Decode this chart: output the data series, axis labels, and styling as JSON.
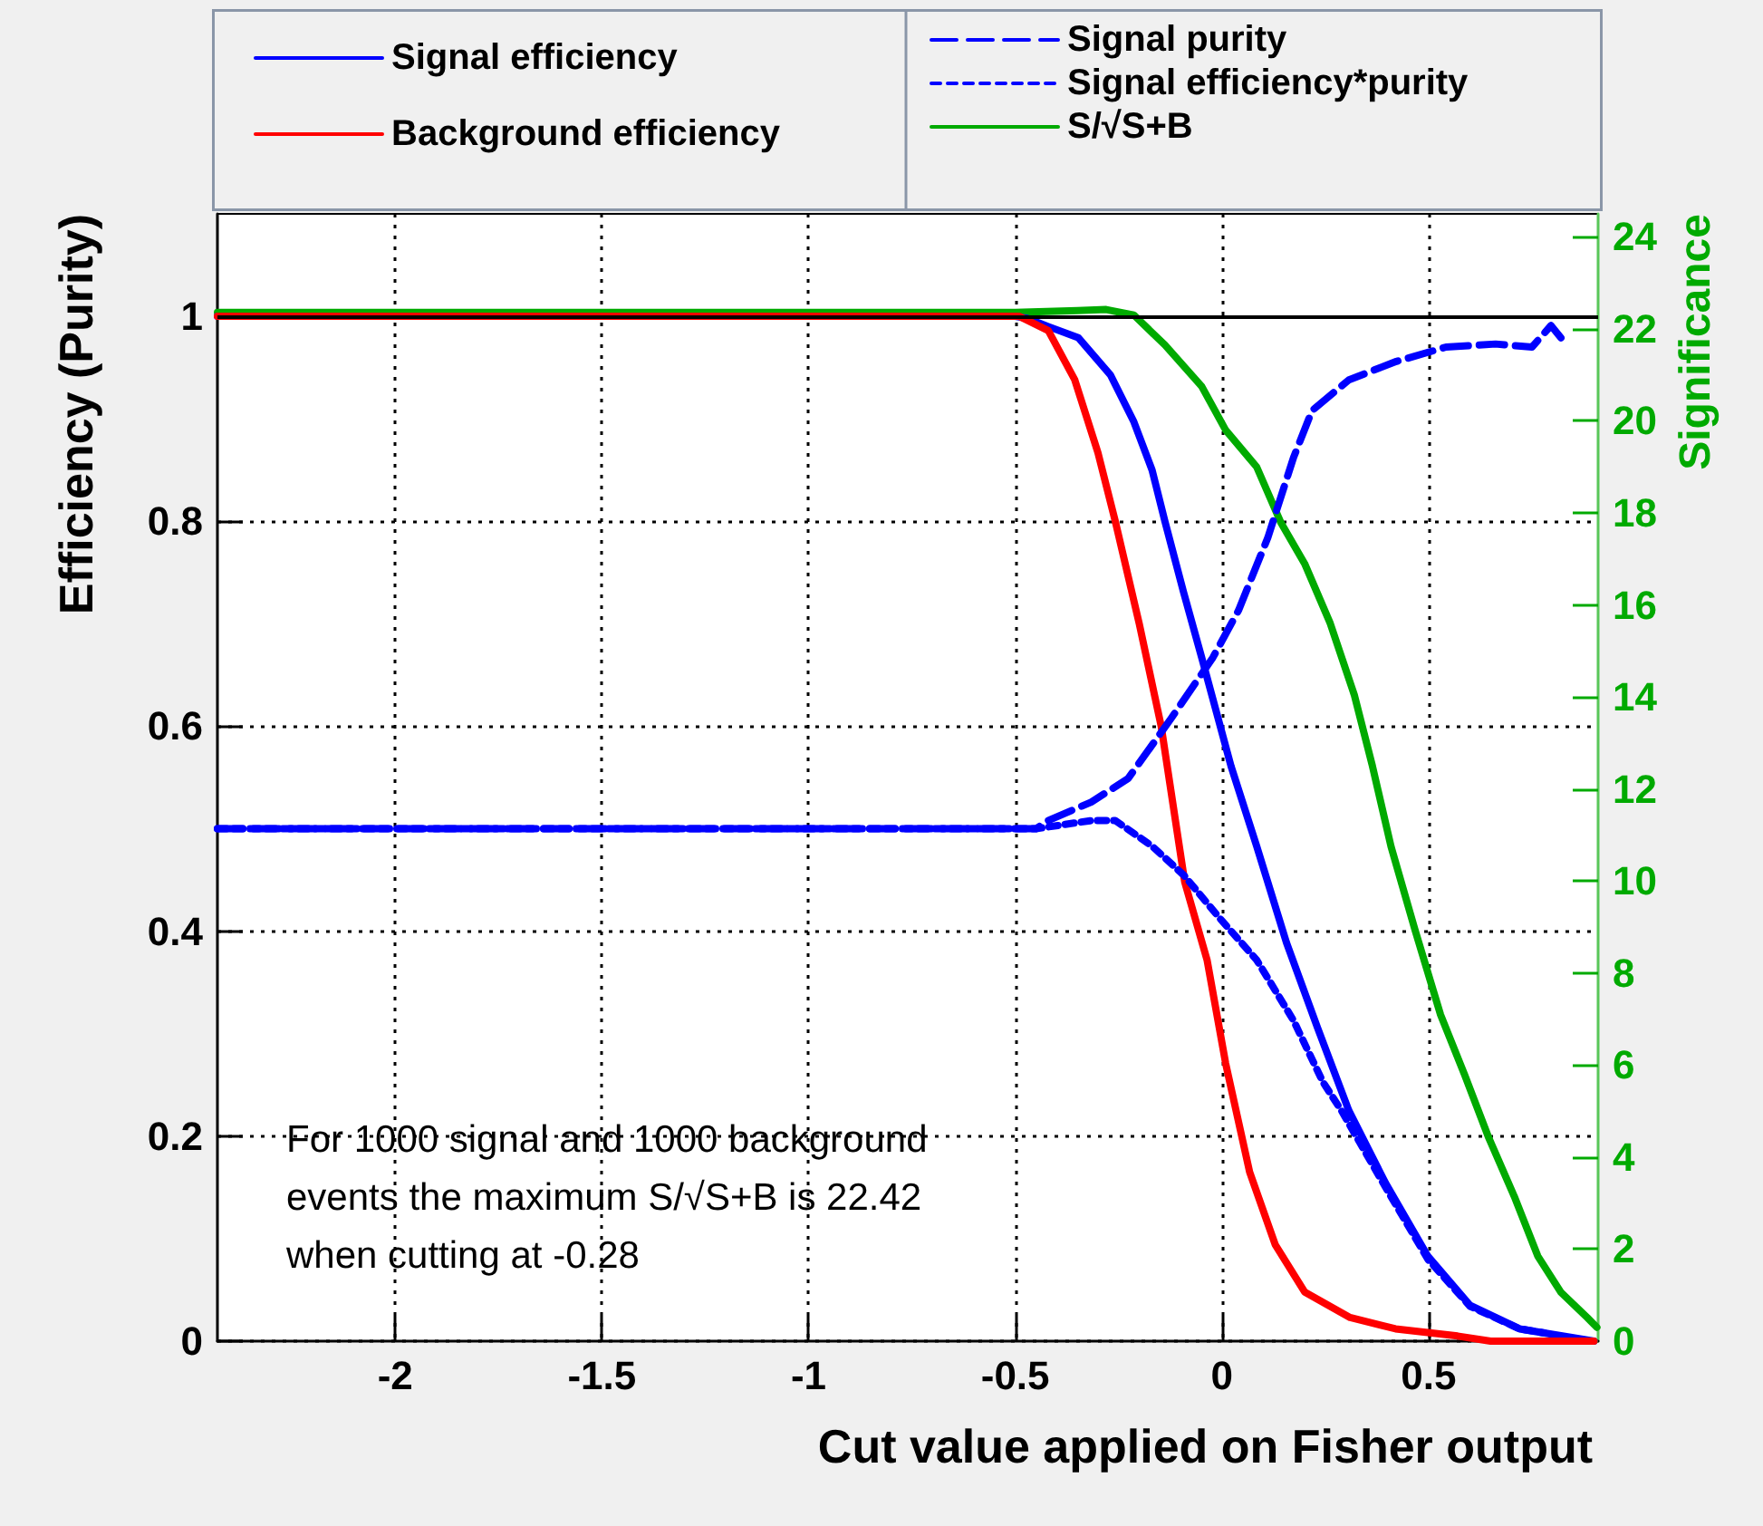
{
  "chart_data": {
    "type": "line",
    "xlabel": "Cut value applied on Fisher output",
    "ylabel": "Efficiency (Purity)",
    "y2label": "Significance",
    "annotations": [
      "For 1000 signal and 1000 background events the maximum S/√S+B is 22.42 when cutting at -0.28"
    ],
    "xlim": [
      -2.43,
      0.91
    ],
    "xticks": [
      -2,
      -1.5,
      -1,
      -0.5,
      0,
      0.5
    ],
    "ylim": [
      0,
      1.1
    ],
    "yticks": [
      0,
      0.2,
      0.4,
      0.6,
      0.8,
      1
    ],
    "y2lim": [
      0,
      24.5
    ],
    "y2ticks": [
      0,
      2,
      4,
      6,
      8,
      10,
      12,
      14,
      16,
      18,
      20,
      22,
      24
    ],
    "grid": true,
    "legend": "top",
    "marker": "none",
    "ref_lines": [
      {
        "axis": "y",
        "value": 1,
        "color": "#000000"
      }
    ],
    "series": [
      {
        "name": "Signal efficiency",
        "color": "#0000ff",
        "line_style": "solid",
        "x": [
          -2.43,
          -0.5,
          -0.47,
          -0.42,
          -0.347,
          -0.27,
          -0.213,
          -0.169,
          -0.138,
          -0.093,
          -0.049,
          0.022,
          0.084,
          0.156,
          0.231,
          0.307,
          0.396,
          0.498,
          0.6,
          0.72,
          0.78,
          0.9
        ],
        "values": [
          1,
          1,
          0.998,
          0.99,
          0.979,
          0.943,
          0.897,
          0.85,
          0.8,
          0.731,
          0.667,
          0.561,
          0.483,
          0.389,
          0.306,
          0.225,
          0.154,
          0.083,
          0.035,
          0.012,
          0.008,
          0
        ]
      },
      {
        "name": "Background efficiency",
        "color": "#ff0000",
        "line_style": "solid",
        "x": [
          -2.43,
          -0.49,
          -0.42,
          -0.356,
          -0.3,
          -0.258,
          -0.2,
          -0.147,
          -0.09,
          -0.036,
          0.009,
          0.067,
          0.129,
          0.2,
          0.31,
          0.42,
          0.57,
          0.65,
          0.9
        ],
        "values": [
          1,
          1,
          0.986,
          0.938,
          0.867,
          0.8,
          0.7,
          0.6,
          0.448,
          0.372,
          0.271,
          0.165,
          0.094,
          0.048,
          0.023,
          0.012,
          0.005,
          0,
          0
        ]
      },
      {
        "name": "Signal purity",
        "color": "#0000ff",
        "line_style": "dashed",
        "x": [
          -2.43,
          -0.45,
          -0.42,
          -0.316,
          -0.227,
          -0.124,
          -0.022,
          0.04,
          0.111,
          0.173,
          0.218,
          0.307,
          0.422,
          0.542,
          0.662,
          0.75,
          0.796,
          0.82
        ],
        "values": [
          0.5,
          0.5,
          0.508,
          0.526,
          0.549,
          0.607,
          0.667,
          0.713,
          0.784,
          0.862,
          0.908,
          0.938,
          0.956,
          0.97,
          0.973,
          0.97,
          0.991,
          0.979
        ]
      },
      {
        "name": "Signal efficiency*purity",
        "color": "#0000ff",
        "line_style": "dotted",
        "x": [
          -2.43,
          -0.45,
          -0.316,
          -0.258,
          -0.169,
          -0.093,
          -0.004,
          0.084,
          0.173,
          0.244,
          0.289,
          0.396,
          0.498,
          0.6,
          0.72,
          0.78
        ],
        "values": [
          0.5,
          0.5,
          0.508,
          0.508,
          0.483,
          0.455,
          0.412,
          0.372,
          0.313,
          0.253,
          0.225,
          0.15,
          0.08,
          0.034,
          0.012,
          0.008
        ]
      },
      {
        "name": "S/√S+B",
        "color": "#00aa00",
        "line_style": "solid",
        "axis": "y2",
        "x": [
          -2.43,
          -0.5,
          -0.35,
          -0.28,
          -0.213,
          -0.138,
          -0.049,
          0.009,
          0.084,
          0.142,
          0.2,
          0.262,
          0.32,
          0.364,
          0.409,
          0.467,
          0.529,
          0.587,
          0.644,
          0.707,
          0.764,
          0.82,
          0.884,
          0.907
        ],
        "values": [
          22.36,
          22.36,
          22.4,
          22.42,
          22.3,
          21.65,
          20.75,
          19.8,
          19.0,
          17.8,
          16.9,
          15.6,
          14.05,
          12.5,
          10.75,
          8.94,
          7.09,
          5.79,
          4.45,
          3.15,
          1.85,
          1.06,
          0.51,
          0.3
        ]
      }
    ]
  }
}
